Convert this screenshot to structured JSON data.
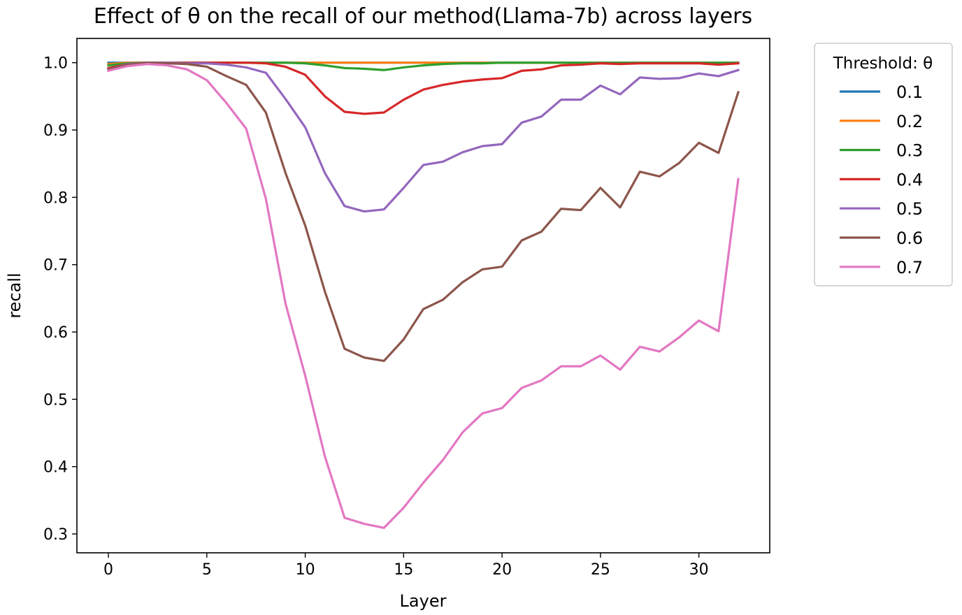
{
  "chart_data": {
    "type": "line",
    "title": "Effect of θ on the recall of our method(Llama-7b) across layers",
    "xlabel": "Layer",
    "ylabel": "recall",
    "xlim": [
      -1.6,
      33.6
    ],
    "ylim": [
      0.272,
      1.036
    ],
    "xticks": [
      0,
      5,
      10,
      15,
      20,
      25,
      30
    ],
    "yticks": [
      0.3,
      0.4,
      0.5,
      0.6,
      0.7,
      0.8,
      0.9,
      1.0
    ],
    "xtick_labels": [
      "0",
      "5",
      "10",
      "15",
      "20",
      "25",
      "30"
    ],
    "ytick_labels": [
      "0.3",
      "0.4",
      "0.5",
      "0.6",
      "0.7",
      "0.8",
      "0.9",
      "1.0"
    ],
    "grid": false,
    "legend": {
      "title": "Threshold: θ",
      "placement": "outside-right-top"
    },
    "x": [
      0,
      1,
      2,
      3,
      4,
      5,
      6,
      7,
      8,
      9,
      10,
      11,
      12,
      13,
      14,
      15,
      16,
      17,
      18,
      19,
      20,
      21,
      22,
      23,
      24,
      25,
      26,
      27,
      28,
      29,
      30,
      31,
      32
    ],
    "series": [
      {
        "name": "0.1",
        "color": "#1f77b4",
        "values": [
          1.0,
          1.0,
          1.0,
          1.0,
          1.0,
          1.0,
          1.0,
          1.0,
          1.0,
          1.0,
          1.0,
          1.0,
          1.0,
          1.0,
          1.0,
          1.0,
          1.0,
          1.0,
          1.0,
          1.0,
          1.0,
          1.0,
          1.0,
          1.0,
          1.0,
          1.0,
          1.0,
          1.0,
          1.0,
          1.0,
          1.0,
          1.0,
          1.0
        ]
      },
      {
        "name": "0.2",
        "color": "#ff7f0e",
        "values": [
          0.998,
          1.0,
          1.0,
          1.0,
          1.0,
          1.0,
          1.0,
          1.0,
          1.0,
          1.0,
          1.0,
          1.0,
          1.0,
          1.0,
          1.0,
          1.0,
          1.0,
          1.0,
          1.0,
          1.0,
          1.0,
          1.0,
          1.0,
          1.0,
          1.0,
          1.0,
          1.0,
          1.0,
          1.0,
          1.0,
          1.0,
          1.0,
          1.0
        ]
      },
      {
        "name": "0.3",
        "color": "#2ca02c",
        "values": [
          0.996,
          0.999,
          1.0,
          1.0,
          1.0,
          1.0,
          1.0,
          1.0,
          1.0,
          1.0,
          0.999,
          0.996,
          0.992,
          0.991,
          0.989,
          0.993,
          0.996,
          0.998,
          0.999,
          0.999,
          1.0,
          1.0,
          1.0,
          1.0,
          1.0,
          1.0,
          1.0,
          1.0,
          1.0,
          1.0,
          1.0,
          1.0,
          1.0
        ]
      },
      {
        "name": "0.4",
        "color": "#d62728",
        "values": [
          0.992,
          0.998,
          1.0,
          1.0,
          1.0,
          1.0,
          1.0,
          1.0,
          0.999,
          0.994,
          0.982,
          0.95,
          0.927,
          0.924,
          0.926,
          0.945,
          0.96,
          0.967,
          0.972,
          0.975,
          0.977,
          0.988,
          0.99,
          0.996,
          0.997,
          0.999,
          0.998,
          0.999,
          0.999,
          0.999,
          0.999,
          0.997,
          0.999
        ]
      },
      {
        "name": "0.5",
        "color": "#9467bd",
        "values": [
          0.99,
          0.998,
          1.0,
          1.0,
          0.999,
          0.999,
          0.997,
          0.993,
          0.985,
          0.946,
          0.904,
          0.836,
          0.787,
          0.779,
          0.782,
          0.814,
          0.848,
          0.853,
          0.867,
          0.876,
          0.879,
          0.911,
          0.92,
          0.945,
          0.945,
          0.966,
          0.953,
          0.978,
          0.976,
          0.977,
          0.984,
          0.98,
          0.989
        ]
      },
      {
        "name": "0.6",
        "color": "#8c564b",
        "values": [
          0.99,
          0.997,
          1.0,
          0.999,
          0.998,
          0.994,
          0.98,
          0.967,
          0.926,
          0.836,
          0.758,
          0.66,
          0.575,
          0.562,
          0.557,
          0.589,
          0.634,
          0.648,
          0.674,
          0.693,
          0.697,
          0.736,
          0.749,
          0.783,
          0.781,
          0.814,
          0.785,
          0.838,
          0.831,
          0.851,
          0.881,
          0.866,
          0.956
        ]
      },
      {
        "name": "0.7",
        "color": "#e377c2",
        "values": [
          0.988,
          0.995,
          0.998,
          0.996,
          0.99,
          0.974,
          0.94,
          0.902,
          0.798,
          0.642,
          0.535,
          0.415,
          0.324,
          0.315,
          0.309,
          0.339,
          0.376,
          0.41,
          0.451,
          0.479,
          0.487,
          0.517,
          0.528,
          0.549,
          0.549,
          0.565,
          0.544,
          0.578,
          0.571,
          0.592,
          0.617,
          0.601,
          0.827
        ]
      }
    ]
  }
}
